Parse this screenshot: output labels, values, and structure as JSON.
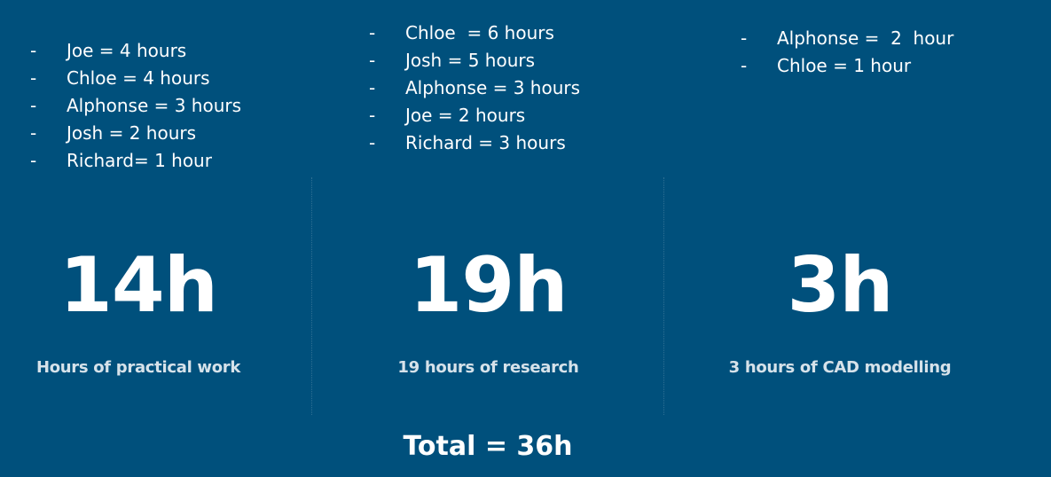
{
  "columns": [
    {
      "entries": [
        "Joe = 4 hours",
        "Chloe = 4 hours",
        "Alphonse = 3 hours",
        "Josh = 2 hours",
        "Richard= 1 hour"
      ],
      "total": "14h",
      "caption": "Hours of practical work"
    },
    {
      "entries": [
        "Chloe  = 6 hours",
        "Josh = 5 hours",
        "Alphonse = 3 hours",
        "Joe = 2 hours",
        "Richard = 3 hours"
      ],
      "total": "19h",
      "caption": "19 hours of research"
    },
    {
      "entries": [
        "Alphonse =  2  hour",
        "Chloe = 1 hour"
      ],
      "total": "3h",
      "caption": "3 hours of CAD modelling"
    }
  ],
  "bullet": "-",
  "grand_total": "Total = 36h",
  "colors": {
    "background": "#00507c",
    "text": "#ffffff",
    "caption": "#d6e2ea"
  }
}
